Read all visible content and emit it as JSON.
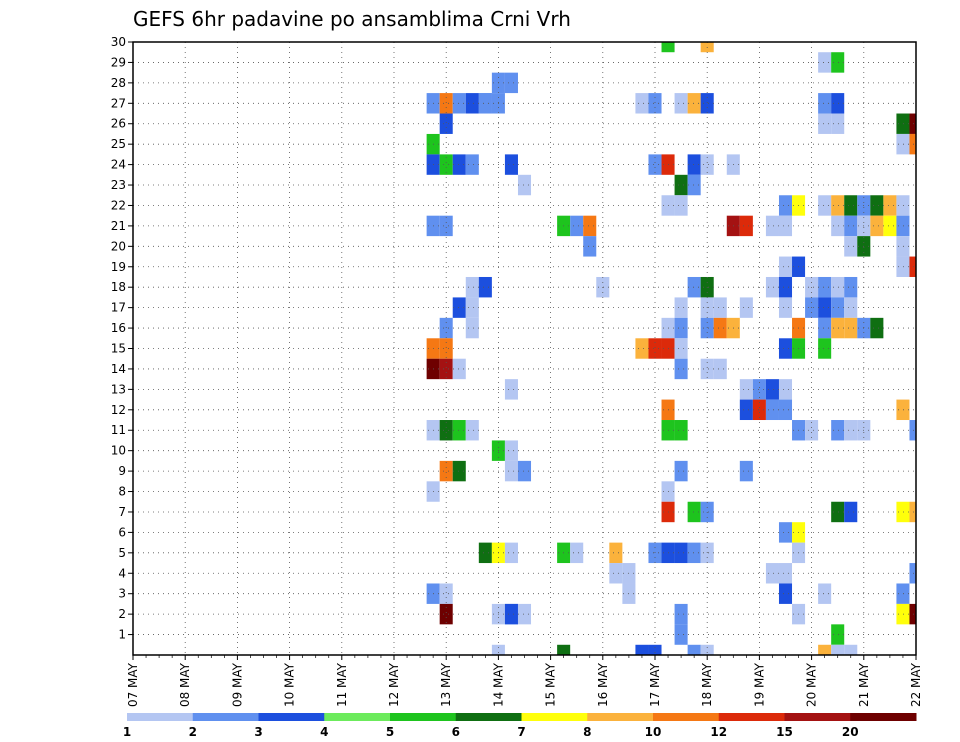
{
  "chart_data": {
    "type": "heatmap",
    "title": "GEFS 6hr padavine po ansamblima Crni Vrh",
    "x_tick_labels": [
      "07 MAY",
      "08 MAY",
      "09 MAY",
      "10 MAY",
      "11 MAY",
      "12 MAY",
      "13 MAY",
      "14 MAY",
      "15 MAY",
      "16 MAY",
      "17 MAY",
      "18 MAY",
      "19 MAY",
      "20 MAY",
      "21 MAY",
      "22 MAY"
    ],
    "y_tick_labels": [
      "1",
      "2",
      "3",
      "4",
      "5",
      "6",
      "7",
      "8",
      "9",
      "10",
      "11",
      "12",
      "13",
      "14",
      "15",
      "16",
      "17",
      "18",
      "19",
      "20",
      "21",
      "22",
      "23",
      "24",
      "25",
      "26",
      "27",
      "28",
      "29",
      "30"
    ],
    "x_unit": "day",
    "x_range": [
      7,
      22
    ],
    "y_range": [
      0,
      30
    ],
    "cell_width_days": 0.25,
    "grid": true,
    "legend_placement": "bottom",
    "legend_labels": [
      "1",
      "2",
      "3",
      "4",
      "5",
      "6",
      "7",
      "8",
      "10",
      "12",
      "15",
      "20"
    ],
    "legend_colors": [
      "#b4c6f2",
      "#6090ef",
      "#1c4fde",
      "#6ceb5c",
      "#1ec41e",
      "#0f6f12",
      "#ffff0b",
      "#fbb23c",
      "#f57814",
      "#dc2a0a",
      "#a41212",
      "#6e0000"
    ],
    "cells": [
      [
        17.25,
        30,
        5
      ],
      [
        18.0,
        30,
        8
      ],
      [
        20.25,
        29,
        1
      ],
      [
        20.5,
        29,
        5
      ],
      [
        14.0,
        28,
        2
      ],
      [
        14.25,
        28,
        2
      ],
      [
        13.75,
        27,
        2
      ],
      [
        14.0,
        27,
        2
      ],
      [
        12.75,
        27,
        2
      ],
      [
        13.0,
        27,
        10
      ],
      [
        13.25,
        27,
        2
      ],
      [
        13.5,
        27,
        3
      ],
      [
        13.75,
        27,
        2
      ],
      [
        16.75,
        27,
        1
      ],
      [
        17.0,
        27,
        2
      ],
      [
        17.5,
        27,
        1
      ],
      [
        17.75,
        27,
        8
      ],
      [
        18.0,
        27,
        3
      ],
      [
        20.25,
        27,
        2
      ],
      [
        20.5,
        27,
        3
      ],
      [
        13.0,
        26,
        3
      ],
      [
        20.25,
        26,
        1
      ],
      [
        20.5,
        26,
        1
      ],
      [
        21.75,
        26,
        6
      ],
      [
        22.0,
        26,
        20
      ],
      [
        12.75,
        25,
        5
      ],
      [
        21.75,
        25,
        1
      ],
      [
        22.0,
        25,
        10
      ],
      [
        12.75,
        24,
        3
      ],
      [
        13.0,
        24,
        5
      ],
      [
        13.25,
        24,
        3
      ],
      [
        13.5,
        24,
        2
      ],
      [
        14.25,
        24,
        3
      ],
      [
        17.0,
        24,
        2
      ],
      [
        17.25,
        24,
        12
      ],
      [
        17.75,
        24,
        3
      ],
      [
        18.0,
        24,
        1
      ],
      [
        18.5,
        24,
        1
      ],
      [
        14.5,
        23,
        1
      ],
      [
        17.5,
        23,
        6
      ],
      [
        17.75,
        23,
        2
      ],
      [
        17.25,
        22,
        1
      ],
      [
        17.5,
        22,
        1
      ],
      [
        19.5,
        22,
        2
      ],
      [
        19.75,
        22,
        7
      ],
      [
        20.25,
        22,
        1
      ],
      [
        20.5,
        22,
        8
      ],
      [
        20.75,
        22,
        6
      ],
      [
        21.0,
        22,
        2
      ],
      [
        21.25,
        22,
        6
      ],
      [
        21.5,
        22,
        8
      ],
      [
        21.75,
        22,
        1
      ],
      [
        12.75,
        21,
        2
      ],
      [
        13.0,
        21,
        2
      ],
      [
        15.25,
        21,
        5
      ],
      [
        15.5,
        21,
        2
      ],
      [
        15.75,
        21,
        10
      ],
      [
        18.5,
        21,
        15
      ],
      [
        18.75,
        21,
        12
      ],
      [
        19.25,
        21,
        1
      ],
      [
        19.5,
        21,
        1
      ],
      [
        20.5,
        21,
        1
      ],
      [
        20.75,
        21,
        2
      ],
      [
        21.0,
        21,
        9
      ],
      [
        21.25,
        21,
        8
      ],
      [
        21.5,
        21,
        7
      ],
      [
        21.75,
        21,
        2
      ],
      [
        15.75,
        20,
        2
      ],
      [
        20.75,
        20,
        1
      ],
      [
        21.0,
        20,
        6
      ],
      [
        21.75,
        20,
        1
      ],
      [
        19.5,
        19,
        1
      ],
      [
        19.75,
        19,
        3
      ],
      [
        21.75,
        19,
        1
      ],
      [
        22.0,
        19,
        12
      ],
      [
        13.5,
        18,
        1
      ],
      [
        13.75,
        18,
        3
      ],
      [
        16.0,
        18,
        1
      ],
      [
        17.75,
        18,
        2
      ],
      [
        18.0,
        18,
        6
      ],
      [
        19.25,
        18,
        1
      ],
      [
        19.5,
        18,
        3
      ],
      [
        20.0,
        18,
        1
      ],
      [
        20.25,
        18,
        2
      ],
      [
        20.5,
        18,
        1
      ],
      [
        20.75,
        18,
        2
      ],
      [
        13.25,
        17,
        3
      ],
      [
        13.5,
        17,
        1
      ],
      [
        17.5,
        17,
        1
      ],
      [
        18.0,
        17,
        1
      ],
      [
        18.25,
        17,
        1
      ],
      [
        18.75,
        17,
        1
      ],
      [
        19.5,
        17,
        1
      ],
      [
        20.0,
        17,
        2
      ],
      [
        20.25,
        17,
        3
      ],
      [
        20.5,
        17,
        2
      ],
      [
        20.75,
        17,
        1
      ],
      [
        13.0,
        16,
        2
      ],
      [
        13.5,
        16,
        1
      ],
      [
        17.25,
        16,
        1
      ],
      [
        17.5,
        16,
        2
      ],
      [
        18.0,
        16,
        2
      ],
      [
        18.25,
        16,
        10
      ],
      [
        18.5,
        16,
        8
      ],
      [
        19.75,
        16,
        10
      ],
      [
        20.25,
        16,
        2
      ],
      [
        20.5,
        16,
        8
      ],
      [
        20.75,
        16,
        8
      ],
      [
        21.0,
        16,
        2
      ],
      [
        21.25,
        16,
        6
      ],
      [
        12.75,
        15,
        10
      ],
      [
        13.0,
        15,
        10
      ],
      [
        16.75,
        15,
        8
      ],
      [
        17.0,
        15,
        12
      ],
      [
        17.25,
        15,
        12
      ],
      [
        17.5,
        15,
        1
      ],
      [
        19.5,
        15,
        3
      ],
      [
        19.75,
        15,
        5
      ],
      [
        20.25,
        15,
        5
      ],
      [
        12.75,
        14,
        20
      ],
      [
        13.0,
        14,
        15
      ],
      [
        13.25,
        14,
        1
      ],
      [
        17.5,
        14,
        2
      ],
      [
        18.0,
        14,
        1
      ],
      [
        18.25,
        14,
        1
      ],
      [
        14.25,
        13,
        1
      ],
      [
        18.75,
        13,
        1
      ],
      [
        19.0,
        13,
        2
      ],
      [
        19.25,
        13,
        3
      ],
      [
        19.5,
        13,
        1
      ],
      [
        17.25,
        12,
        10
      ],
      [
        18.75,
        12,
        3
      ],
      [
        19.0,
        12,
        12
      ],
      [
        19.25,
        12,
        2
      ],
      [
        19.5,
        12,
        2
      ],
      [
        21.75,
        12,
        8
      ],
      [
        12.75,
        11,
        1
      ],
      [
        13.0,
        11,
        6
      ],
      [
        13.25,
        11,
        5
      ],
      [
        13.5,
        11,
        1
      ],
      [
        17.25,
        11,
        5
      ],
      [
        17.5,
        11,
        5
      ],
      [
        19.75,
        11,
        2
      ],
      [
        20.0,
        11,
        1
      ],
      [
        20.5,
        11,
        2
      ],
      [
        20.75,
        11,
        1
      ],
      [
        21.0,
        11,
        1
      ],
      [
        22.0,
        11,
        2
      ],
      [
        14.0,
        10,
        5
      ],
      [
        14.25,
        10,
        1
      ],
      [
        13.0,
        9,
        10
      ],
      [
        13.25,
        9,
        6
      ],
      [
        14.25,
        9,
        1
      ],
      [
        14.5,
        9,
        2
      ],
      [
        17.5,
        9,
        2
      ],
      [
        18.75,
        9,
        2
      ],
      [
        12.75,
        8,
        1
      ],
      [
        17.25,
        8,
        1
      ],
      [
        17.25,
        7,
        12
      ],
      [
        17.75,
        7,
        5
      ],
      [
        18.0,
        7,
        2
      ],
      [
        20.5,
        7,
        6
      ],
      [
        20.75,
        7,
        3
      ],
      [
        21.75,
        7,
        7
      ],
      [
        22.0,
        7,
        8
      ],
      [
        19.5,
        6,
        2
      ],
      [
        19.75,
        6,
        7
      ],
      [
        13.75,
        5,
        6
      ],
      [
        14.0,
        5,
        7
      ],
      [
        14.25,
        5,
        1
      ],
      [
        15.25,
        5,
        5
      ],
      [
        15.5,
        5,
        1
      ],
      [
        16.25,
        5,
        8
      ],
      [
        17.0,
        5,
        2
      ],
      [
        17.25,
        5,
        3
      ],
      [
        17.5,
        5,
        3
      ],
      [
        17.75,
        5,
        2
      ],
      [
        18.0,
        5,
        1
      ],
      [
        19.75,
        5,
        1
      ],
      [
        16.25,
        4,
        1
      ],
      [
        16.5,
        4,
        1
      ],
      [
        19.25,
        4,
        1
      ],
      [
        19.5,
        4,
        1
      ],
      [
        22.0,
        4,
        2
      ],
      [
        12.75,
        3,
        2
      ],
      [
        13.0,
        3,
        1
      ],
      [
        16.5,
        3,
        1
      ],
      [
        19.5,
        3,
        3
      ],
      [
        20.25,
        3,
        1
      ],
      [
        21.75,
        3,
        2
      ],
      [
        13.0,
        2,
        20
      ],
      [
        14.0,
        2,
        1
      ],
      [
        14.25,
        2,
        1
      ],
      [
        14.25,
        2,
        1
      ],
      [
        14.25,
        2,
        3
      ],
      [
        14.5,
        2,
        1
      ],
      [
        17.5,
        2,
        2
      ],
      [
        19.75,
        2,
        1
      ],
      [
        21.75,
        2,
        7
      ],
      [
        22.0,
        2,
        20
      ],
      [
        17.5,
        1,
        2
      ],
      [
        20.5,
        1,
        5
      ],
      [
        14.0,
        0,
        1
      ],
      [
        15.25,
        0,
        6
      ],
      [
        16.75,
        0,
        3
      ],
      [
        17.0,
        0,
        3
      ],
      [
        17.75,
        0,
        2
      ],
      [
        18.0,
        0,
        1
      ],
      [
        20.25,
        0,
        8
      ],
      [
        20.5,
        0,
        1
      ],
      [
        20.75,
        0,
        1
      ]
    ]
  }
}
